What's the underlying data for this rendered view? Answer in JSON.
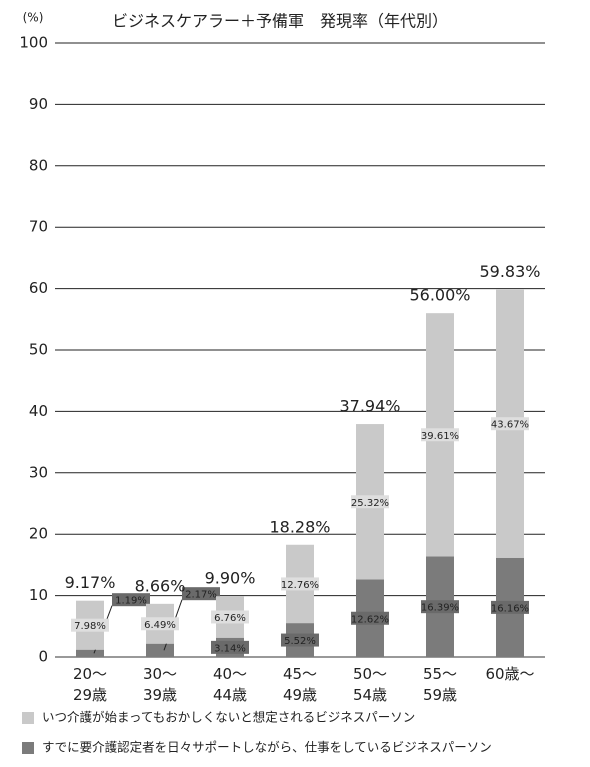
{
  "chart_data": {
    "type": "stacked-bar",
    "title": "ビジネスケアラー＋予備軍　発現率（年代別）",
    "y_unit": "(%)",
    "categories": [
      "20～29歳",
      "30～39歳",
      "40～44歳",
      "45～49歳",
      "50～54歳",
      "55～59歳",
      "60歳～"
    ],
    "series": [
      {
        "name": "すでに要介護認定者を日々サポートしながら、仕事をしているビジネスパーソン",
        "color": "#7b7b7b",
        "values": [
          1.19,
          2.17,
          3.14,
          5.52,
          12.62,
          16.39,
          16.16
        ],
        "value_labels": [
          "1.19%",
          "2.17%",
          "3.14%",
          "5.52%",
          "12.62%",
          "16.39%",
          "16.16%"
        ]
      },
      {
        "name": "いつ介護が始まってもおかしくないと想定されるビジネスパーソン",
        "color": "#c9c9c9",
        "values": [
          7.98,
          6.49,
          6.76,
          12.76,
          25.32,
          39.61,
          43.67
        ],
        "value_labels": [
          "7.98%",
          "6.49%",
          "6.76%",
          "12.76%",
          "25.32%",
          "39.61%",
          "43.67%"
        ]
      }
    ],
    "totals": [
      9.17,
      8.66,
      9.9,
      18.28,
      37.94,
      56.0,
      59.83
    ],
    "total_labels": [
      "9.17%",
      "8.66%",
      "9.90%",
      "18.28%",
      "37.94%",
      "56.00%",
      "59.83%"
    ],
    "ylim": [
      0,
      100
    ],
    "yticks": [
      0,
      10,
      20,
      30,
      40,
      50,
      60,
      70,
      80,
      90,
      100
    ],
    "grid": true
  }
}
